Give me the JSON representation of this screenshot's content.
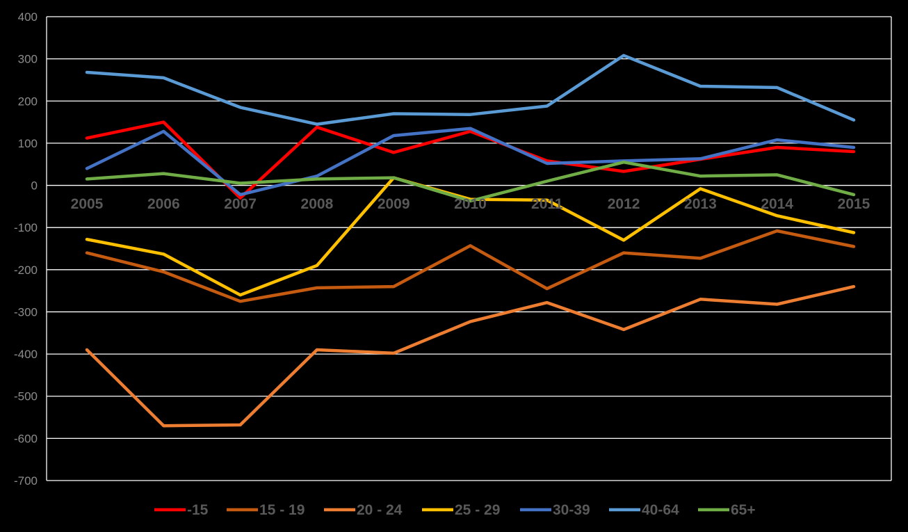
{
  "chart_data": {
    "type": "line",
    "categories": [
      "2005",
      "2006",
      "2007",
      "2008",
      "2009",
      "2010",
      "2011",
      "2012",
      "2013",
      "2014",
      "2015"
    ],
    "ylim": [
      -700,
      400
    ],
    "yticks": [
      400,
      300,
      200,
      100,
      0,
      -100,
      -200,
      -300,
      -400,
      -500,
      -600,
      -700
    ],
    "grid": true,
    "legend_position": "bottom",
    "series": [
      {
        "name": "-15",
        "color": "#ff0000",
        "values": [
          112,
          150,
          -30,
          138,
          78,
          128,
          58,
          33,
          62,
          90,
          80
        ]
      },
      {
        "name": "15 - 19",
        "color": "#c55a11",
        "values": [
          -160,
          -205,
          -275,
          -243,
          -240,
          -143,
          -245,
          -160,
          -173,
          -108,
          -145
        ]
      },
      {
        "name": "20 - 24",
        "color": "#ed7d31",
        "values": [
          -390,
          -570,
          -568,
          -390,
          -398,
          -323,
          -278,
          -342,
          -270,
          -282,
          -240
        ]
      },
      {
        "name": "25 - 29",
        "color": "#ffc000",
        "values": [
          -128,
          -163,
          -260,
          -190,
          18,
          -33,
          -35,
          -130,
          -8,
          -72,
          -112
        ]
      },
      {
        "name": "30-39",
        "color": "#4472c4",
        "values": [
          40,
          128,
          -22,
          22,
          118,
          135,
          52,
          58,
          63,
          108,
          90
        ]
      },
      {
        "name": "40-64",
        "color": "#5b9bd5",
        "values": [
          268,
          255,
          185,
          145,
          170,
          168,
          188,
          308,
          235,
          232,
          155
        ]
      },
      {
        "name": "65+",
        "color": "#70ad47",
        "values": [
          15,
          28,
          5,
          15,
          18,
          -37,
          10,
          55,
          22,
          25,
          -22
        ]
      }
    ]
  }
}
